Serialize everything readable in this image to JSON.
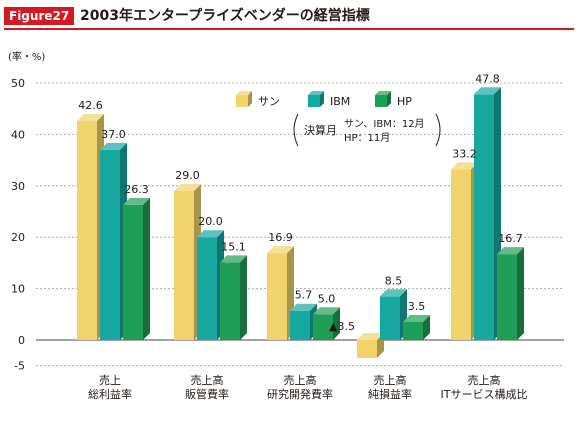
{
  "figure": {
    "badge": "Figure27",
    "title": "2003年エンタープライズベンダーの経営指標"
  },
  "chart_data": {
    "type": "bar",
    "ylabel": "(率・%)",
    "ylim": [
      -5,
      50
    ],
    "yticks": [
      50,
      40,
      30,
      20,
      10,
      0,
      -5
    ],
    "grid": true,
    "legend_position": "top-right",
    "categories": [
      [
        "売上",
        "総利益率"
      ],
      [
        "売上高",
        "販管費率"
      ],
      [
        "売上高",
        "研究開発費率"
      ],
      [
        "売上高",
        "純損益率"
      ],
      [
        "売上高",
        "ITサービス構成比"
      ]
    ],
    "series": [
      {
        "name": "サン",
        "color": "#f0d36a",
        "values": [
          42.6,
          29.0,
          16.9,
          -3.5,
          33.2
        ],
        "labels": [
          "42.6",
          "29.0",
          "16.9",
          "▲3.5",
          "33.2"
        ]
      },
      {
        "name": "IBM",
        "color": "#17a8a0",
        "values": [
          37.0,
          20.0,
          5.7,
          8.5,
          47.8
        ],
        "labels": [
          "37.0",
          "20.0",
          "5.7",
          "8.5",
          "47.8"
        ]
      },
      {
        "name": "HP",
        "color": "#1f9e57",
        "values": [
          26.3,
          15.1,
          5.0,
          3.5,
          16.7
        ],
        "labels": [
          "26.3",
          "15.1",
          "5.0",
          "3.5",
          "16.7"
        ]
      }
    ],
    "annotation": {
      "label": "決算月",
      "lines": [
        "サン、IBM：12月",
        "HP：11月"
      ]
    }
  }
}
